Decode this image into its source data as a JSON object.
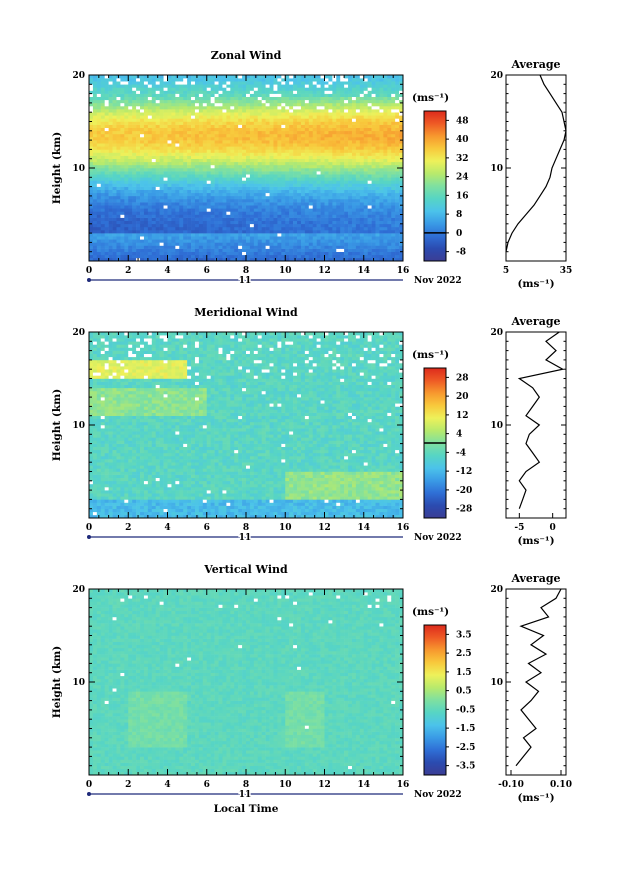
{
  "chart_data": [
    {
      "type": "heatmap",
      "title": "Zonal Wind",
      "ylabel": "Height (km)",
      "x_ticks": [
        "0",
        "2",
        "4",
        "6",
        "8",
        "10",
        "12",
        "14",
        "16"
      ],
      "y_ticks": [
        "10",
        "20"
      ],
      "xlim": [
        0,
        16
      ],
      "ylim": [
        0,
        20
      ],
      "day_label": "11",
      "date_label": "Nov 2022",
      "colorbar": {
        "unit_label": "(ms⁻¹)",
        "ticks": [
          "48",
          "40",
          "32",
          "24",
          "16",
          "8",
          "0",
          "-8"
        ],
        "min": -12,
        "max": 52
      },
      "profile": {
        "title": "Average",
        "x_ticks": [
          "5",
          "35"
        ],
        "y_ticks": [
          "10",
          "20"
        ],
        "xlim": [
          5,
          35
        ],
        "xlabel": "(ms⁻¹)",
        "points": [
          [
            5,
            1
          ],
          [
            6,
            2
          ],
          [
            8,
            3
          ],
          [
            11,
            4
          ],
          [
            15,
            5
          ],
          [
            19,
            6
          ],
          [
            22,
            7
          ],
          [
            25,
            8
          ],
          [
            27,
            9
          ],
          [
            28,
            10
          ],
          [
            30,
            11
          ],
          [
            32,
            12
          ],
          [
            34,
            13
          ],
          [
            35,
            14
          ],
          [
            34,
            15
          ],
          [
            33,
            16
          ],
          [
            30,
            17
          ],
          [
            27,
            18
          ],
          [
            24,
            19
          ],
          [
            22,
            20
          ]
        ]
      }
    },
    {
      "type": "heatmap",
      "title": "Meridional Wind",
      "ylabel": "Height (km)",
      "x_ticks": [
        "0",
        "2",
        "4",
        "6",
        "8",
        "10",
        "12",
        "14",
        "16"
      ],
      "y_ticks": [
        "10",
        "20"
      ],
      "xlim": [
        0,
        16
      ],
      "ylim": [
        0,
        20
      ],
      "day_label": "11",
      "date_label": "Nov 2022",
      "colorbar": {
        "unit_label": "(ms⁻¹)",
        "ticks": [
          "28",
          "20",
          "12",
          "4",
          "-4",
          "-12",
          "-20",
          "-28"
        ],
        "min": -32,
        "max": 32
      },
      "profile": {
        "title": "Average",
        "x_ticks": [
          "-5",
          "0"
        ],
        "y_ticks": [
          "10",
          "20"
        ],
        "xlim": [
          -7,
          2
        ],
        "xlabel": "(ms⁻¹)",
        "points": [
          [
            -5,
            1
          ],
          [
            -4.5,
            2
          ],
          [
            -4,
            3
          ],
          [
            -5,
            4
          ],
          [
            -4,
            5
          ],
          [
            -2,
            6
          ],
          [
            -3,
            7
          ],
          [
            -4,
            8
          ],
          [
            -3.5,
            9
          ],
          [
            -2,
            10
          ],
          [
            -4,
            11
          ],
          [
            -3,
            12
          ],
          [
            -2,
            13
          ],
          [
            -3,
            14
          ],
          [
            -5,
            15
          ],
          [
            1.5,
            16
          ],
          [
            -1,
            17
          ],
          [
            0.5,
            18
          ],
          [
            -1,
            19
          ],
          [
            1,
            20
          ]
        ]
      }
    },
    {
      "type": "heatmap",
      "title": "Vertical Wind",
      "ylabel": "Height (km)",
      "xlabel": "Local Time",
      "x_ticks": [
        "0",
        "2",
        "4",
        "6",
        "8",
        "10",
        "12",
        "14",
        "16"
      ],
      "y_ticks": [
        "10",
        "20"
      ],
      "xlim": [
        0,
        16
      ],
      "ylim": [
        0,
        20
      ],
      "day_label": "11",
      "date_label": "Nov 2022",
      "colorbar": {
        "unit_label": "(ms⁻¹)",
        "ticks": [
          "3.5",
          "2.5",
          "1.5",
          "0.5",
          "-0.5",
          "-1.5",
          "-2.5",
          "-3.5"
        ],
        "min": -4,
        "max": 4
      },
      "profile": {
        "title": "Average",
        "x_ticks": [
          "-0.10",
          "0.10"
        ],
        "y_ticks": [
          "10",
          "20"
        ],
        "xlim": [
          -0.12,
          0.12
        ],
        "xlabel": "(ms⁻¹)",
        "points": [
          [
            -0.08,
            1
          ],
          [
            -0.05,
            2
          ],
          [
            -0.02,
            3
          ],
          [
            -0.05,
            4
          ],
          [
            0.0,
            5
          ],
          [
            -0.03,
            6
          ],
          [
            -0.06,
            7
          ],
          [
            -0.02,
            8
          ],
          [
            0.01,
            9
          ],
          [
            -0.04,
            10
          ],
          [
            0.02,
            11
          ],
          [
            -0.03,
            12
          ],
          [
            0.04,
            13
          ],
          [
            -0.02,
            14
          ],
          [
            0.03,
            15
          ],
          [
            -0.06,
            16
          ],
          [
            0.05,
            17
          ],
          [
            0.02,
            18
          ],
          [
            0.08,
            19
          ],
          [
            0.1,
            20
          ]
        ]
      }
    }
  ]
}
